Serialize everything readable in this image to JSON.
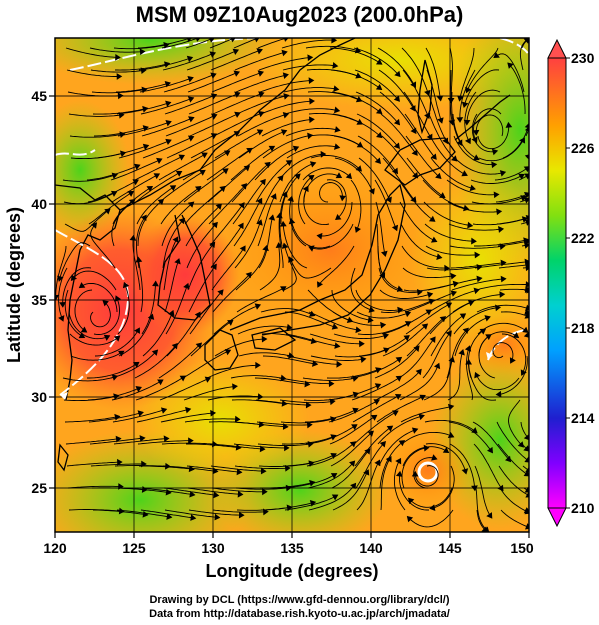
{
  "title": "MSM 09Z10Aug2023 (200.0hPa)",
  "xaxis": {
    "label": "Longitude (degrees)",
    "range": [
      120,
      150
    ],
    "ticks": [
      "120",
      "125",
      "130",
      "135",
      "140",
      "145",
      "150"
    ]
  },
  "yaxis": {
    "label": "Latitude  (degrees)",
    "range": [
      22.4,
      47.9
    ],
    "ticks": [
      "25",
      "30",
      "35",
      "40",
      "45"
    ]
  },
  "colorbar": {
    "range": [
      210,
      230
    ],
    "ticks": [
      "210",
      "214",
      "218",
      "222",
      "226",
      "230"
    ],
    "colors": [
      "#ff00ff",
      "#1f1fcf",
      "#00c8ff",
      "#00d36a",
      "#82e010",
      "#f0f000",
      "#ffa000",
      "#ff3000",
      "#ff5050"
    ]
  },
  "map": {
    "variable": "temperature shading with wind streamlines",
    "grid": true,
    "features": [
      "coastlines",
      "streamlines",
      "white contour",
      "typhoon vortex"
    ]
  },
  "credits": {
    "line1": "Drawing by DCL (https://www.gfd-dennou.org/library/dcl/)",
    "line2": "Data from http://database.rish.kyoto-u.ac.jp/arch/jmadata/"
  }
}
